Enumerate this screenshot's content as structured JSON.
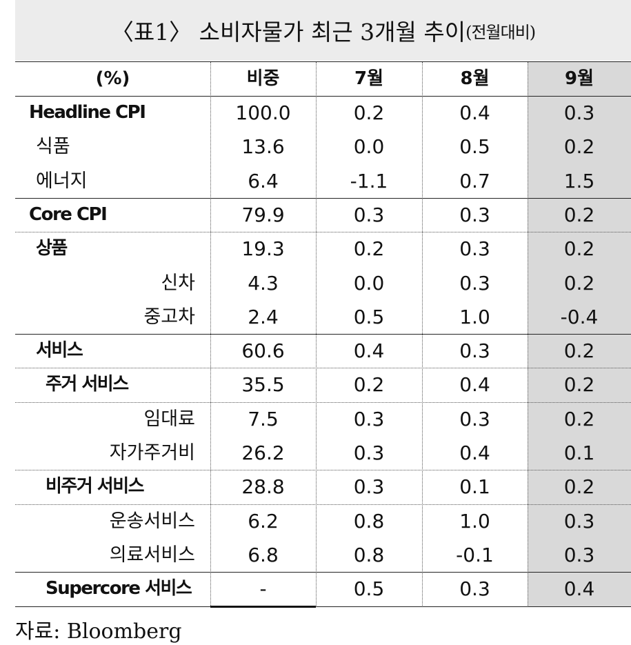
{
  "title": {
    "main": "〈표1〉 소비자물가 최근 3개월 추이",
    "sub": "(전월대비)"
  },
  "table": {
    "header": [
      "(%)",
      "비중",
      "7월",
      "8월",
      "9월"
    ],
    "rows": [
      [
        "Headline CPI",
        "100.0",
        "0.2",
        "0.4",
        "0.3"
      ],
      [
        "식품",
        "13.6",
        "0.0",
        "0.5",
        "0.2"
      ],
      [
        "에너지",
        "6.4",
        "-1.1",
        "0.7",
        "1.5"
      ],
      [
        "Core CPI",
        "79.9",
        "0.3",
        "0.3",
        "0.2"
      ],
      [
        "상품",
        "19.3",
        "0.2",
        "0.3",
        "0.2"
      ],
      [
        "신차",
        "4.3",
        "0.0",
        "0.3",
        "0.2"
      ],
      [
        "중고차",
        "2.4",
        "0.5",
        "1.0",
        "-0.4"
      ],
      [
        "서비스",
        "60.6",
        "0.4",
        "0.3",
        "0.2"
      ],
      [
        "주거 서비스",
        "35.5",
        "0.2",
        "0.4",
        "0.2"
      ],
      [
        "임대료",
        "7.5",
        "0.3",
        "0.3",
        "0.2"
      ],
      [
        "자가주거비",
        "26.2",
        "0.3",
        "0.4",
        "0.1"
      ],
      [
        "비주거 서비스",
        "28.8",
        "0.3",
        "0.1",
        "0.2"
      ],
      [
        "운송서비스",
        "6.2",
        "0.8",
        "1.0",
        "0.3"
      ],
      [
        "의료서비스",
        "6.8",
        "0.8",
        "-0.1",
        "0.3"
      ],
      [
        "Supercore 서비스",
        "-",
        "0.5",
        "0.3",
        "0.4"
      ]
    ]
  },
  "source": "자료: Bloomberg"
}
